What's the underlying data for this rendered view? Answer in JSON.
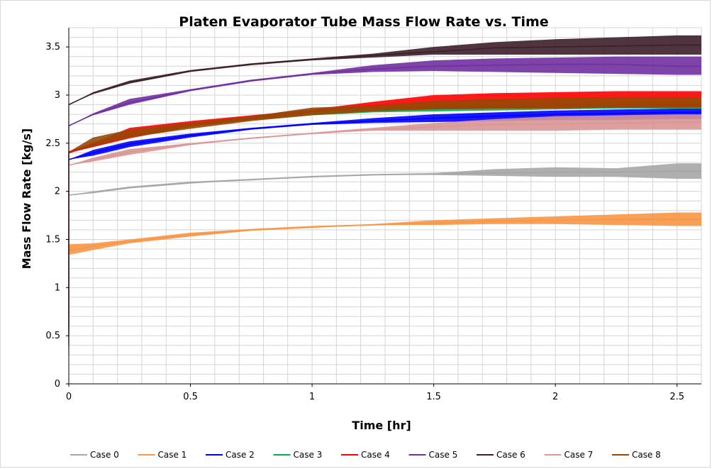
{
  "chart_data": {
    "type": "line",
    "title": "Platen Evaporator Tube Mass Flow Rate vs. Time",
    "xlabel": "Time  [hr]",
    "ylabel": "Mass Flow Rate  [kg/s]",
    "xlim": [
      0,
      2.6
    ],
    "ylim": [
      0,
      3.7
    ],
    "x_ticks": [
      "0",
      "0.5",
      "1",
      "1.5",
      "2",
      "2.5"
    ],
    "y_ticks": [
      "0",
      "0.5",
      "1",
      "1.5",
      "2",
      "2.5",
      "3",
      "3.5"
    ],
    "grid": true,
    "legend_position": "bottom",
    "series": [
      {
        "name": "Case 0",
        "color": "#a6a6a6",
        "x": [
          0,
          0.1,
          0.25,
          0.5,
          0.75,
          1.0,
          1.25,
          1.5,
          1.75,
          2.0,
          2.25,
          2.5,
          2.6
        ],
        "y": [
          1.96,
          1.99,
          2.04,
          2.09,
          2.12,
          2.15,
          2.17,
          2.18,
          2.19,
          2.2,
          2.2,
          2.21,
          2.21
        ],
        "y_low": [
          1.96,
          1.98,
          2.03,
          2.08,
          2.12,
          2.15,
          2.17,
          2.17,
          2.16,
          2.15,
          2.15,
          2.13,
          2.13
        ],
        "y_high": [
          1.96,
          2.0,
          2.05,
          2.1,
          2.13,
          2.16,
          2.18,
          2.19,
          2.23,
          2.25,
          2.24,
          2.29,
          2.29
        ]
      },
      {
        "name": "Case 1",
        "color": "#f79646",
        "x": [
          0,
          0.1,
          0.25,
          0.5,
          0.75,
          1.0,
          1.25,
          1.5,
          1.75,
          2.0,
          2.25,
          2.5,
          2.6
        ],
        "y": [
          1.38,
          1.43,
          1.48,
          1.55,
          1.6,
          1.63,
          1.65,
          1.67,
          1.69,
          1.7,
          1.71,
          1.71,
          1.71
        ],
        "y_low": [
          1.34,
          1.39,
          1.46,
          1.53,
          1.59,
          1.62,
          1.65,
          1.65,
          1.66,
          1.66,
          1.65,
          1.64,
          1.64
        ],
        "y_high": [
          1.45,
          1.46,
          1.5,
          1.57,
          1.61,
          1.64,
          1.66,
          1.7,
          1.72,
          1.74,
          1.76,
          1.78,
          1.78
        ]
      },
      {
        "name": "Case 2",
        "color": "#0000ff",
        "x": [
          0,
          0.1,
          0.25,
          0.5,
          0.75,
          1.0,
          1.25,
          1.5,
          1.75,
          2.0,
          2.25,
          2.5,
          2.6
        ],
        "y": [
          2.33,
          2.4,
          2.49,
          2.58,
          2.65,
          2.7,
          2.73,
          2.76,
          2.78,
          2.8,
          2.81,
          2.82,
          2.82
        ],
        "y_low": [
          2.33,
          2.37,
          2.46,
          2.56,
          2.64,
          2.69,
          2.71,
          2.72,
          2.73,
          2.74,
          2.74,
          2.75,
          2.75
        ],
        "y_high": [
          2.33,
          2.43,
          2.52,
          2.6,
          2.66,
          2.71,
          2.76,
          2.8,
          2.82,
          2.84,
          2.85,
          2.86,
          2.86
        ]
      },
      {
        "name": "Case 3",
        "color": "#00b050",
        "x": [
          0,
          0.1,
          0.25,
          0.5,
          0.75,
          1.0,
          1.25,
          1.5,
          1.75,
          2.0,
          2.25,
          2.5,
          2.6
        ],
        "y": [
          2.4,
          2.48,
          2.58,
          2.68,
          2.75,
          2.8,
          2.84,
          2.86,
          2.87,
          2.88,
          2.88,
          2.89,
          2.89
        ],
        "y_low": [
          2.4,
          2.46,
          2.56,
          2.67,
          2.74,
          2.79,
          2.82,
          2.83,
          2.84,
          2.85,
          2.86,
          2.86,
          2.86
        ],
        "y_high": [
          2.4,
          2.5,
          2.6,
          2.69,
          2.76,
          2.81,
          2.86,
          2.89,
          2.9,
          2.91,
          2.91,
          2.92,
          2.92
        ]
      },
      {
        "name": "Case 4",
        "color": "#ff0000",
        "x": [
          0,
          0.1,
          0.25,
          0.5,
          0.75,
          1.0,
          1.25,
          1.5,
          1.75,
          2.0,
          2.25,
          2.5,
          2.6
        ],
        "y": [
          2.4,
          2.48,
          2.6,
          2.7,
          2.77,
          2.83,
          2.89,
          2.93,
          2.95,
          2.96,
          2.97,
          2.97,
          2.97
        ],
        "y_low": [
          2.4,
          2.46,
          2.55,
          2.67,
          2.75,
          2.82,
          2.85,
          2.86,
          2.86,
          2.87,
          2.87,
          2.87,
          2.87
        ],
        "y_high": [
          2.4,
          2.5,
          2.66,
          2.73,
          2.79,
          2.85,
          2.93,
          3.0,
          3.02,
          3.03,
          3.04,
          3.04,
          3.04
        ]
      },
      {
        "name": "Case 5",
        "color": "#7030a0",
        "x": [
          0,
          0.1,
          0.25,
          0.5,
          0.75,
          1.0,
          1.25,
          1.5,
          1.75,
          2.0,
          2.25,
          2.5,
          2.6
        ],
        "y": [
          2.68,
          2.8,
          2.92,
          3.05,
          3.15,
          3.22,
          3.27,
          3.3,
          3.31,
          3.32,
          3.32,
          3.3,
          3.3
        ],
        "y_low": [
          2.68,
          2.79,
          2.9,
          3.04,
          3.14,
          3.21,
          3.24,
          3.25,
          3.24,
          3.23,
          3.22,
          3.21,
          3.21
        ],
        "y_high": [
          2.68,
          2.81,
          2.96,
          3.06,
          3.16,
          3.23,
          3.31,
          3.36,
          3.38,
          3.39,
          3.4,
          3.4,
          3.4
        ]
      },
      {
        "name": "Case 6",
        "color": "#3d1f2c",
        "x": [
          0,
          0.1,
          0.25,
          0.5,
          0.75,
          1.0,
          1.25,
          1.5,
          1.75,
          2.0,
          2.25,
          2.5,
          2.6
        ],
        "y": [
          2.9,
          3.02,
          3.13,
          3.25,
          3.32,
          3.37,
          3.41,
          3.45,
          3.49,
          3.5,
          3.51,
          3.52,
          3.52
        ],
        "y_low": [
          2.9,
          3.01,
          3.12,
          3.24,
          3.31,
          3.36,
          3.39,
          3.42,
          3.42,
          3.42,
          3.42,
          3.42,
          3.42
        ],
        "y_high": [
          2.9,
          3.03,
          3.15,
          3.26,
          3.33,
          3.38,
          3.43,
          3.5,
          3.55,
          3.58,
          3.6,
          3.62,
          3.62
        ]
      },
      {
        "name": "Case 7",
        "color": "#d99694",
        "x": [
          0,
          0.1,
          0.25,
          0.5,
          0.75,
          1.0,
          1.25,
          1.5,
          1.75,
          2.0,
          2.25,
          2.5,
          2.6
        ],
        "y": [
          2.27,
          2.33,
          2.41,
          2.49,
          2.55,
          2.6,
          2.64,
          2.67,
          2.69,
          2.7,
          2.71,
          2.72,
          2.72
        ],
        "y_low": [
          2.27,
          2.31,
          2.38,
          2.48,
          2.55,
          2.6,
          2.63,
          2.63,
          2.63,
          2.63,
          2.64,
          2.64,
          2.64
        ],
        "y_high": [
          2.27,
          2.35,
          2.44,
          2.5,
          2.56,
          2.61,
          2.66,
          2.71,
          2.75,
          2.78,
          2.79,
          2.8,
          2.8
        ]
      },
      {
        "name": "Case 8",
        "color": "#984807",
        "x": [
          0,
          0.1,
          0.25,
          0.5,
          0.75,
          1.0,
          1.25,
          1.5,
          1.75,
          2.0,
          2.25,
          2.5,
          2.6
        ],
        "y": [
          2.41,
          2.5,
          2.6,
          2.68,
          2.75,
          2.82,
          2.86,
          2.9,
          2.91,
          2.92,
          2.92,
          2.93,
          2.93
        ],
        "y_low": [
          2.41,
          2.47,
          2.56,
          2.65,
          2.73,
          2.79,
          2.83,
          2.85,
          2.86,
          2.86,
          2.87,
          2.87,
          2.87
        ],
        "y_high": [
          2.41,
          2.56,
          2.64,
          2.71,
          2.78,
          2.87,
          2.89,
          2.94,
          2.96,
          2.97,
          2.98,
          2.98,
          2.98
        ]
      }
    ]
  }
}
